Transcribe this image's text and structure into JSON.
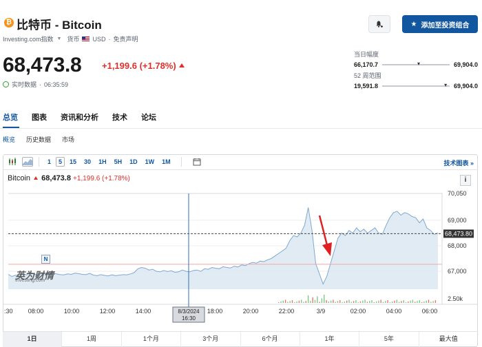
{
  "header": {
    "coin_symbol": "₿",
    "title": "比特币 - Bitcoin",
    "source": "Investing.com指数",
    "currency_label": "货币",
    "currency": "USD",
    "disclaimer": "免责声明",
    "price": "68,473.8",
    "change": "+1,199.6 (+1.78%)",
    "realtime_label": "实时数据",
    "time": "06:35:59",
    "portfolio_button": "添加至投资组合"
  },
  "ranges": {
    "day_label": "当日幅度",
    "day_low": "66,170.7",
    "day_high": "69,904.0",
    "week52_label": "52 周范围",
    "week52_low": "19,591.8",
    "week52_high": "69,904.0"
  },
  "tabs": [
    "总览",
    "图表",
    "资讯和分析",
    "技术",
    "论坛"
  ],
  "sub_tabs": [
    "概览",
    "历史数据",
    "市场"
  ],
  "toolbar": {
    "intervals": [
      "1",
      "5",
      "15",
      "30",
      "1H",
      "5H",
      "1D",
      "1W",
      "1M"
    ],
    "selected": "5",
    "tech_chart": "技术图表 »"
  },
  "chart_header": {
    "name": "Bitcoin",
    "price": "68,473.8",
    "change": "+1,199.6 (+1.78%)"
  },
  "chart_data": {
    "type": "area",
    "x_ticks": [
      ":30",
      "08:00",
      "10:00",
      "12:00",
      "14:00",
      "16:00",
      "18:00",
      "20:00",
      "22:00",
      "3/9",
      "02:00",
      "04:00",
      "06:00"
    ],
    "y_ticks": [
      "70,050",
      "69,000",
      "68,000",
      "67,000"
    ],
    "volume_label": "2.50k",
    "current_price_label": "68,473.80",
    "crosshair_date": "8/3/2024",
    "crosshair_time": "16:30",
    "ylim": [
      66300,
      70050
    ],
    "series": [
      {
        "values": [
          66880,
          66800,
          66850,
          66830,
          66900,
          66860,
          66950,
          66880,
          66850,
          66920,
          66900,
          66880,
          66950,
          66900,
          66870,
          66860,
          66900,
          66880,
          66930,
          66910,
          66880,
          66870,
          66920,
          66850,
          66830,
          66870,
          66840,
          66820,
          66860,
          66830,
          66850,
          66870,
          66860,
          66900,
          66950,
          67100,
          67150,
          67120,
          67050,
          67080,
          67000,
          66980,
          67030,
          66990,
          67020,
          66960,
          66980,
          67050,
          67000,
          66980,
          67030,
          67050,
          67000,
          67100,
          67080,
          67150,
          67120,
          67100,
          67180,
          67150,
          67130,
          67200,
          67170,
          67250,
          67220,
          67300,
          67350,
          67320,
          67400,
          67380,
          67450,
          67500,
          67600,
          67700,
          67800,
          67900,
          68200,
          68400,
          68350,
          68500,
          68800,
          69500,
          68600,
          67300,
          66900,
          66500,
          66800,
          67300,
          67800,
          68300,
          68500,
          68400,
          68600,
          68500,
          68700,
          68550,
          68650,
          68500,
          68600,
          68700,
          68500,
          68450,
          68800,
          69100,
          69300,
          69350,
          69200,
          69300,
          69250,
          69150,
          69100,
          68900,
          69050,
          68700,
          68600,
          68450,
          68500
        ]
      }
    ]
  },
  "periods": [
    "1日",
    "1周",
    "1个月",
    "3个月",
    "6个月",
    "1年",
    "5年",
    "最大值"
  ],
  "selected_period": "1日",
  "watermark": {
    "text": "英为财情",
    "sub": "Investing.com",
    "badge": "N"
  }
}
